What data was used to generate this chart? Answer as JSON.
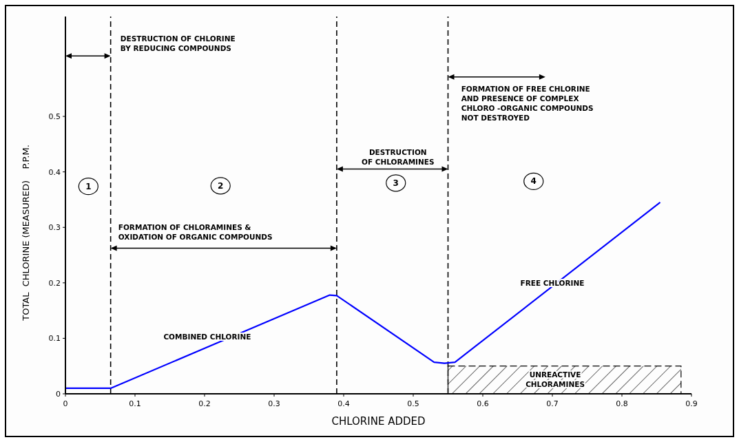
{
  "chart_data": {
    "type": "line",
    "xlabel": "CHLORINE ADDED",
    "ylabel": "TOTAL  CHLORINE (MEASURED)    P.P.M.",
    "xlim": [
      0,
      0.9
    ],
    "ylim": [
      0,
      0.68
    ],
    "xticks": [
      0,
      0.1,
      0.2,
      0.3,
      0.4,
      0.5,
      0.6,
      0.7,
      0.8,
      0.9
    ],
    "yticks": [
      0,
      0.1,
      0.2,
      0.3,
      0.4,
      0.5
    ],
    "series": [
      {
        "type": "line",
        "color": "#0000ff",
        "x": [
          0,
          0.065,
          0.38,
          0.39,
          0.53,
          0.545,
          0.56,
          0.855
        ],
        "values": [
          0.01,
          0.01,
          0.178,
          0.177,
          0.057,
          0.055,
          0.057,
          0.345
        ]
      },
      {
        "type": "area",
        "color": "#000000",
        "x": [
          0.55,
          0.885
        ],
        "values": [
          0.05,
          0.05
        ]
      }
    ],
    "ref_lines": [
      {
        "axis": "x",
        "value": 0.065,
        "line_style": "dashed"
      },
      {
        "axis": "x",
        "value": 0.39,
        "line_style": "dashed"
      },
      {
        "axis": "x",
        "value": 0.55,
        "line_style": "dashed"
      }
    ],
    "annotations": [
      "DESTRUCTION OF CHLORINE\nBY REDUCING COMPOUNDS",
      "FORMATION OF CHLORAMINES &\nOXIDATION OF ORGANIC COMPOUNDS",
      "DESTRUCTION\nOF CHLORAMINES",
      {
        "text": "FORMATION OF FREE CHLORINE\nAND PRESENCE OF COMPLEX\nCHLORO -ORGANIC COMPOUNDS\nNOT DESTROYED",
        "x": 0.55,
        "y": 0.571
      },
      "1",
      "2",
      "3",
      "4",
      "COMBINED CHLORINE",
      "FREE CHLORINE",
      "UNREACTIVE\nCHLORAMINES"
    ],
    "grid": false,
    "marker": "none",
    "line_style": "solid"
  }
}
